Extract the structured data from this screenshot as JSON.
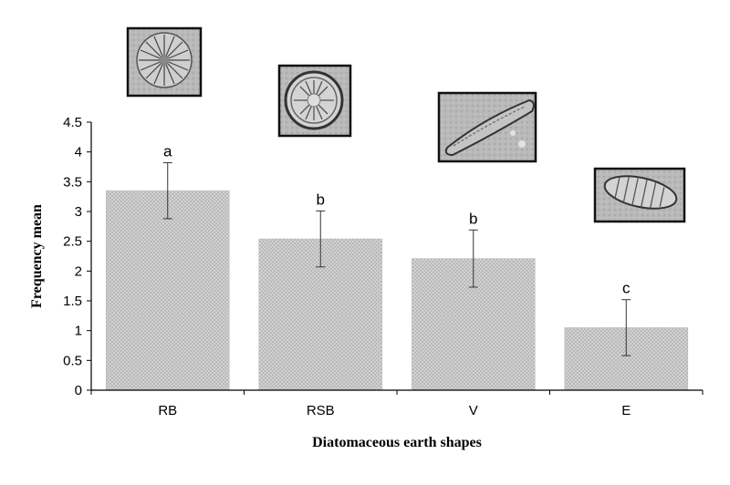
{
  "chart_data": {
    "type": "bar",
    "title": "",
    "xlabel": "Diatomaceous earth shapes",
    "ylabel": "Frequency mean",
    "categories": [
      "RB",
      "RSB",
      "V",
      "E"
    ],
    "values": [
      3.35,
      2.54,
      2.21,
      1.05
    ],
    "error": [
      0.47,
      0.47,
      0.48,
      0.47
    ],
    "significance": [
      "a",
      "b",
      "b",
      "c"
    ],
    "ylim": [
      0,
      4.5
    ],
    "yticks": [
      "0",
      "0.5",
      "1",
      "1.5",
      "2",
      "2.5",
      "3",
      "3.5",
      "4",
      "4.5"
    ],
    "grid": false,
    "legend": "none",
    "bar_color": "#c8c8c8",
    "inset_icons": [
      "radial-diatom-icon",
      "ring-diatom-icon",
      "elongated-diatom-icon",
      "elliptic-diatom-icon"
    ]
  }
}
